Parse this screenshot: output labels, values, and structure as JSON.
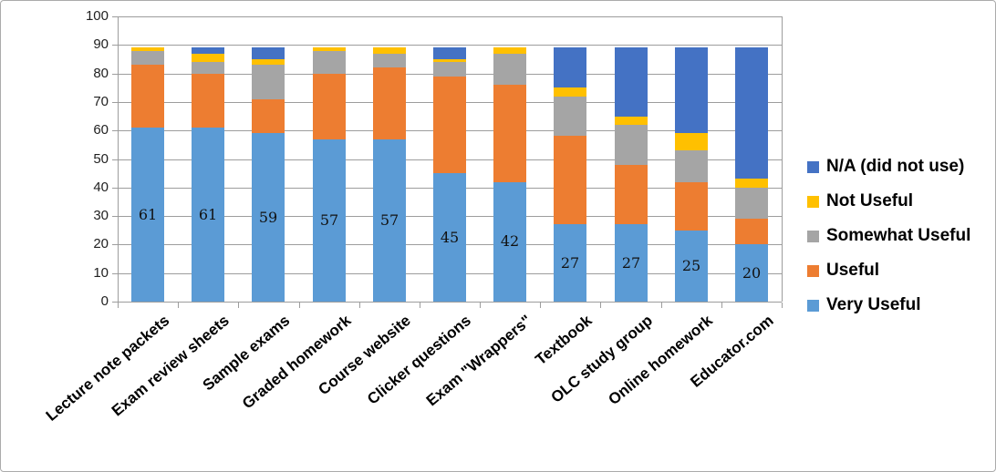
{
  "chart_data": {
    "type": "bar",
    "stacked": true,
    "title": "",
    "xlabel": "",
    "ylabel": "",
    "ylim": [
      0,
      100
    ],
    "y_ticks": [
      0,
      10,
      20,
      30,
      40,
      50,
      60,
      70,
      80,
      90,
      100
    ],
    "grid": true,
    "legend_position": "right",
    "categories": [
      "Lecture note packets",
      "Exam review sheets",
      "Sample exams",
      "Graded homework",
      "Course website",
      "Clicker questions",
      "Exam \"Wrappers\"",
      "Textbook",
      "OLC study group",
      "Online homework",
      "Educator.com"
    ],
    "series": [
      {
        "name": "Very Useful",
        "color": "#5B9BD5",
        "values": [
          61,
          61,
          59,
          57,
          57,
          45,
          42,
          27,
          27,
          25,
          20
        ]
      },
      {
        "name": "Useful",
        "color": "#ED7D31",
        "values": [
          22,
          19,
          12,
          23,
          25,
          34,
          34,
          31,
          21,
          17,
          9
        ]
      },
      {
        "name": "Somewhat Useful",
        "color": "#A5A5A5",
        "values": [
          5,
          4,
          12,
          8,
          5,
          5,
          11,
          14,
          14,
          11,
          11
        ]
      },
      {
        "name": "Not Useful",
        "color": "#FFC000",
        "values": [
          1,
          3,
          2,
          1,
          2,
          1,
          2,
          3,
          3,
          6,
          3
        ]
      },
      {
        "name": "N/A (did not use)",
        "color": "#4472C4",
        "values": [
          0,
          2,
          4,
          0,
          0,
          4,
          0,
          14,
          24,
          30,
          46
        ]
      }
    ],
    "data_labels": {
      "series": "Very Useful",
      "values": [
        61,
        61,
        59,
        57,
        57,
        45,
        42,
        27,
        27,
        25,
        20
      ]
    },
    "legend_order": [
      "N/A (did not use)",
      "Not Useful",
      "Somewhat Useful",
      "Useful",
      "Very Useful"
    ]
  },
  "styles": {
    "gridline_color": "#9d9d9d",
    "frame_border_color": "#ababab",
    "background": "#ffffff"
  }
}
